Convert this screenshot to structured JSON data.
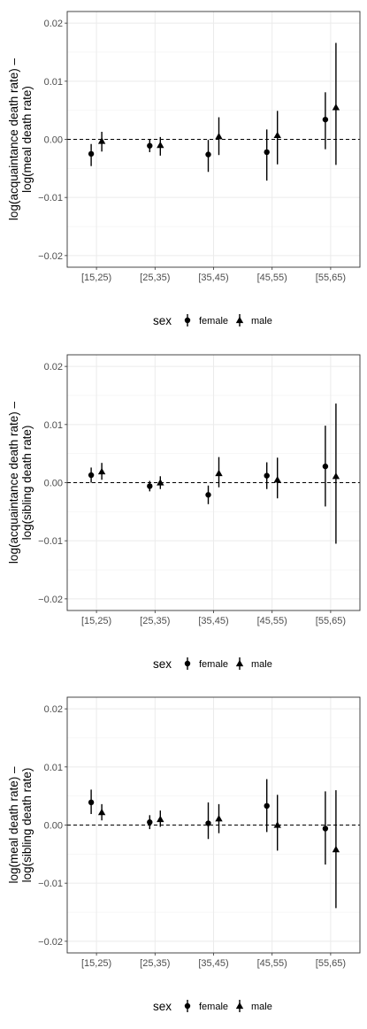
{
  "chart_data": [
    {
      "type": "scatter",
      "ylabel_lines": [
        "log(acquaintance death rate) –",
        "log(meal death rate)"
      ],
      "categories": [
        "[15,25)",
        "[25,35)",
        "[35,45)",
        "[45,55)",
        "[55,65)"
      ],
      "ylim": [
        -0.022,
        0.022
      ],
      "yticks": [
        -0.02,
        -0.01,
        0.0,
        0.01,
        0.02
      ],
      "ytick_labels": [
        "−0.02",
        "−0.01",
        "0.00",
        "0.01",
        "0.02"
      ],
      "hline": 0,
      "grid": true,
      "series": [
        {
          "name": "female",
          "shape": "circle",
          "values": [
            -0.0025,
            -0.0011,
            -0.0026,
            -0.0022,
            0.0034
          ],
          "lower": [
            -0.0046,
            -0.0022,
            -0.0056,
            -0.0071,
            -0.0017
          ],
          "upper": [
            -0.0008,
            0.0,
            -0.0001,
            0.0017,
            0.0081
          ]
        },
        {
          "name": "male",
          "shape": "triangle",
          "values": [
            -0.0003,
            -0.001,
            0.0005,
            0.0007,
            0.0055
          ],
          "lower": [
            -0.0021,
            -0.0028,
            -0.0027,
            -0.0043,
            -0.0044
          ],
          "upper": [
            0.0013,
            0.0004,
            0.0038,
            0.0049,
            0.0166
          ]
        }
      ],
      "legend": {
        "title": "sex",
        "position": "bottom"
      }
    },
    {
      "type": "scatter",
      "ylabel_lines": [
        "log(acquaintance death rate) –",
        "log(sibling death rate)"
      ],
      "categories": [
        "[15,25)",
        "[25,35)",
        "[35,45)",
        "[45,55)",
        "[55,65)"
      ],
      "ylim": [
        -0.022,
        0.022
      ],
      "yticks": [
        -0.02,
        -0.01,
        0.0,
        0.01,
        0.02
      ],
      "ytick_labels": [
        "−0.02",
        "−0.01",
        "0.00",
        "0.01",
        "0.02"
      ],
      "hline": 0,
      "grid": true,
      "series": [
        {
          "name": "female",
          "shape": "circle",
          "values": [
            0.0013,
            -0.0006,
            -0.0021,
            0.0012,
            0.0028
          ],
          "lower": [
            0.0,
            -0.0015,
            -0.0037,
            -0.0011,
            -0.0041
          ],
          "upper": [
            0.0026,
            0.0003,
            -0.0005,
            0.0035,
            0.0098
          ]
        },
        {
          "name": "male",
          "shape": "triangle",
          "values": [
            0.0019,
            0.0,
            0.0016,
            0.0005,
            0.0011
          ],
          "lower": [
            0.0005,
            -0.0011,
            -0.0008,
            -0.0027,
            -0.0105
          ],
          "upper": [
            0.0034,
            0.0011,
            0.0044,
            0.0043,
            0.0136
          ]
        }
      ],
      "legend": {
        "title": "sex",
        "position": "bottom"
      }
    },
    {
      "type": "scatter",
      "ylabel_lines": [
        "log(meal death rate) –",
        "log(sibling death rate)"
      ],
      "categories": [
        "[15,25)",
        "[25,35)",
        "[35,45)",
        "[45,55)",
        "[55,65)"
      ],
      "ylim": [
        -0.022,
        0.022
      ],
      "yticks": [
        -0.02,
        -0.01,
        0.0,
        0.01,
        0.02
      ],
      "ytick_labels": [
        "−0.02",
        "−0.01",
        "0.00",
        "0.01",
        "0.02"
      ],
      "hline": 0,
      "grid": true,
      "series": [
        {
          "name": "female",
          "shape": "circle",
          "values": [
            0.0039,
            0.0005,
            0.0003,
            0.0033,
            -0.0006
          ],
          "lower": [
            0.0019,
            -0.0007,
            -0.0024,
            -0.0012,
            -0.0068
          ],
          "upper": [
            0.0061,
            0.0017,
            0.0039,
            0.0079,
            0.0058
          ]
        },
        {
          "name": "male",
          "shape": "triangle",
          "values": [
            0.0022,
            0.001,
            0.0011,
            0.0,
            -0.0042
          ],
          "lower": [
            0.0008,
            -0.0003,
            -0.0014,
            -0.0044,
            -0.0143
          ],
          "upper": [
            0.0036,
            0.0025,
            0.0036,
            0.0052,
            0.006
          ]
        }
      ],
      "legend": {
        "title": "sex",
        "position": "bottom"
      }
    }
  ]
}
